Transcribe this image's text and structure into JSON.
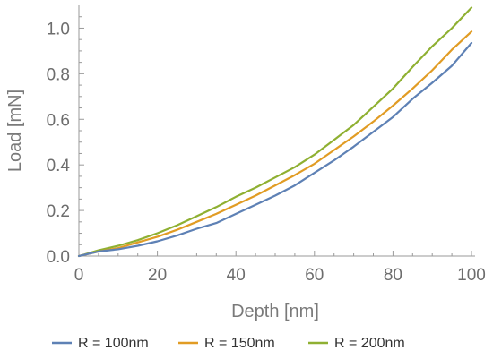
{
  "chart_data": {
    "type": "line",
    "title": "",
    "xlabel": "Depth [nm]",
    "ylabel": "Load [mN]",
    "xlim": [
      0,
      100
    ],
    "ylim": [
      0,
      1.1
    ],
    "xticks": [
      0,
      20,
      40,
      60,
      80,
      100
    ],
    "xtick_labels": [
      "0",
      "20",
      "40",
      "60",
      "80",
      "100"
    ],
    "yticks": [
      0.0,
      0.2,
      0.4,
      0.6,
      0.8,
      1.0
    ],
    "ytick_labels": [
      "0.0",
      "0.2",
      "0.4",
      "0.6",
      "0.8",
      "1.0"
    ],
    "grid": false,
    "legend_position": "bottom",
    "x": [
      0,
      5,
      10,
      15,
      20,
      25,
      30,
      35,
      40,
      45,
      50,
      55,
      60,
      65,
      70,
      75,
      80,
      85,
      90,
      95,
      100
    ],
    "series": [
      {
        "name": "R = 100nm",
        "color": "#5e81b5",
        "values": [
          0.0,
          0.02,
          0.03,
          0.045,
          0.065,
          0.09,
          0.12,
          0.145,
          0.185,
          0.225,
          0.265,
          0.31,
          0.365,
          0.42,
          0.48,
          0.545,
          0.61,
          0.69,
          0.76,
          0.835,
          0.935
        ]
      },
      {
        "name": "R = 150nm",
        "color": "#e19c24",
        "values": [
          0.0,
          0.02,
          0.035,
          0.06,
          0.085,
          0.115,
          0.15,
          0.185,
          0.225,
          0.265,
          0.31,
          0.355,
          0.405,
          0.465,
          0.525,
          0.59,
          0.66,
          0.735,
          0.815,
          0.905,
          0.985
        ]
      },
      {
        "name": "R = 200nm",
        "color": "#8fb032",
        "values": [
          0.0,
          0.025,
          0.045,
          0.07,
          0.1,
          0.135,
          0.175,
          0.215,
          0.26,
          0.3,
          0.345,
          0.39,
          0.445,
          0.51,
          0.575,
          0.655,
          0.735,
          0.83,
          0.92,
          1.0,
          1.09
        ]
      }
    ]
  }
}
